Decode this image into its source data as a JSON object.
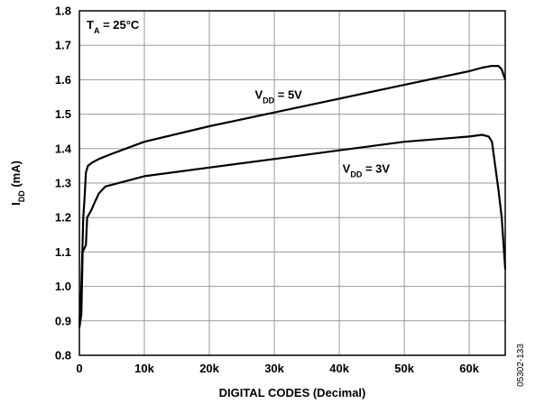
{
  "chart_data": {
    "type": "line",
    "xlabel": "DIGITAL CODES (Decimal)",
    "ylabel": {
      "main": "I",
      "sub": "DD",
      "suffix": " (mA)"
    },
    "xlim": [
      0,
      65536
    ],
    "ylim": [
      0.8,
      1.8
    ],
    "x_ticks": [
      {
        "value": 0,
        "label": "0"
      },
      {
        "value": 10000,
        "label": "10k"
      },
      {
        "value": 20000,
        "label": "20k"
      },
      {
        "value": 30000,
        "label": "30k"
      },
      {
        "value": 40000,
        "label": "40k"
      },
      {
        "value": 50000,
        "label": "50k"
      },
      {
        "value": 60000,
        "label": "60k"
      }
    ],
    "y_ticks": [
      {
        "value": 0.8,
        "label": "0.8"
      },
      {
        "value": 0.9,
        "label": "0.9"
      },
      {
        "value": 1.0,
        "label": "1.0"
      },
      {
        "value": 1.1,
        "label": "1.1"
      },
      {
        "value": 1.2,
        "label": "1.2"
      },
      {
        "value": 1.3,
        "label": "1.3"
      },
      {
        "value": 1.4,
        "label": "1.4"
      },
      {
        "value": 1.5,
        "label": "1.5"
      },
      {
        "value": 1.6,
        "label": "1.6"
      },
      {
        "value": 1.7,
        "label": "1.7"
      },
      {
        "value": 1.8,
        "label": "1.8"
      }
    ],
    "grid": true,
    "condition": {
      "main": "T",
      "sub": "A",
      "suffix": " = 25°C"
    },
    "series": [
      {
        "label_main": "V",
        "label_sub": "DD",
        "label_suffix": " = 5V",
        "label_at": [
          27000,
          1.545
        ],
        "points": [
          [
            0,
            0.89
          ],
          [
            300,
            1.0
          ],
          [
            600,
            1.2
          ],
          [
            800,
            1.26
          ],
          [
            1000,
            1.33
          ],
          [
            1300,
            1.35
          ],
          [
            2000,
            1.36
          ],
          [
            3000,
            1.37
          ],
          [
            5000,
            1.385
          ],
          [
            10000,
            1.42
          ],
          [
            20000,
            1.465
          ],
          [
            30000,
            1.505
          ],
          [
            40000,
            1.545
          ],
          [
            50000,
            1.585
          ],
          [
            60000,
            1.625
          ],
          [
            62000,
            1.635
          ],
          [
            63500,
            1.64
          ],
          [
            64500,
            1.64
          ],
          [
            65000,
            1.63
          ],
          [
            65535,
            1.6
          ]
        ]
      },
      {
        "label_main": "V",
        "label_sub": "DD",
        "label_suffix": " = 3V",
        "label_at": [
          40500,
          1.33
        ],
        "points": [
          [
            0,
            0.88
          ],
          [
            300,
            0.92
          ],
          [
            500,
            1.1
          ],
          [
            1000,
            1.12
          ],
          [
            1200,
            1.2
          ],
          [
            1800,
            1.22
          ],
          [
            2500,
            1.25
          ],
          [
            3000,
            1.27
          ],
          [
            4000,
            1.29
          ],
          [
            5000,
            1.295
          ],
          [
            10000,
            1.32
          ],
          [
            20000,
            1.345
          ],
          [
            30000,
            1.37
          ],
          [
            40000,
            1.395
          ],
          [
            50000,
            1.42
          ],
          [
            60000,
            1.435
          ],
          [
            62000,
            1.44
          ],
          [
            63000,
            1.435
          ],
          [
            63500,
            1.42
          ],
          [
            64000,
            1.35
          ],
          [
            64500,
            1.28
          ],
          [
            65000,
            1.2
          ],
          [
            65535,
            1.05
          ]
        ]
      }
    ]
  },
  "figure_id": "05302-133"
}
